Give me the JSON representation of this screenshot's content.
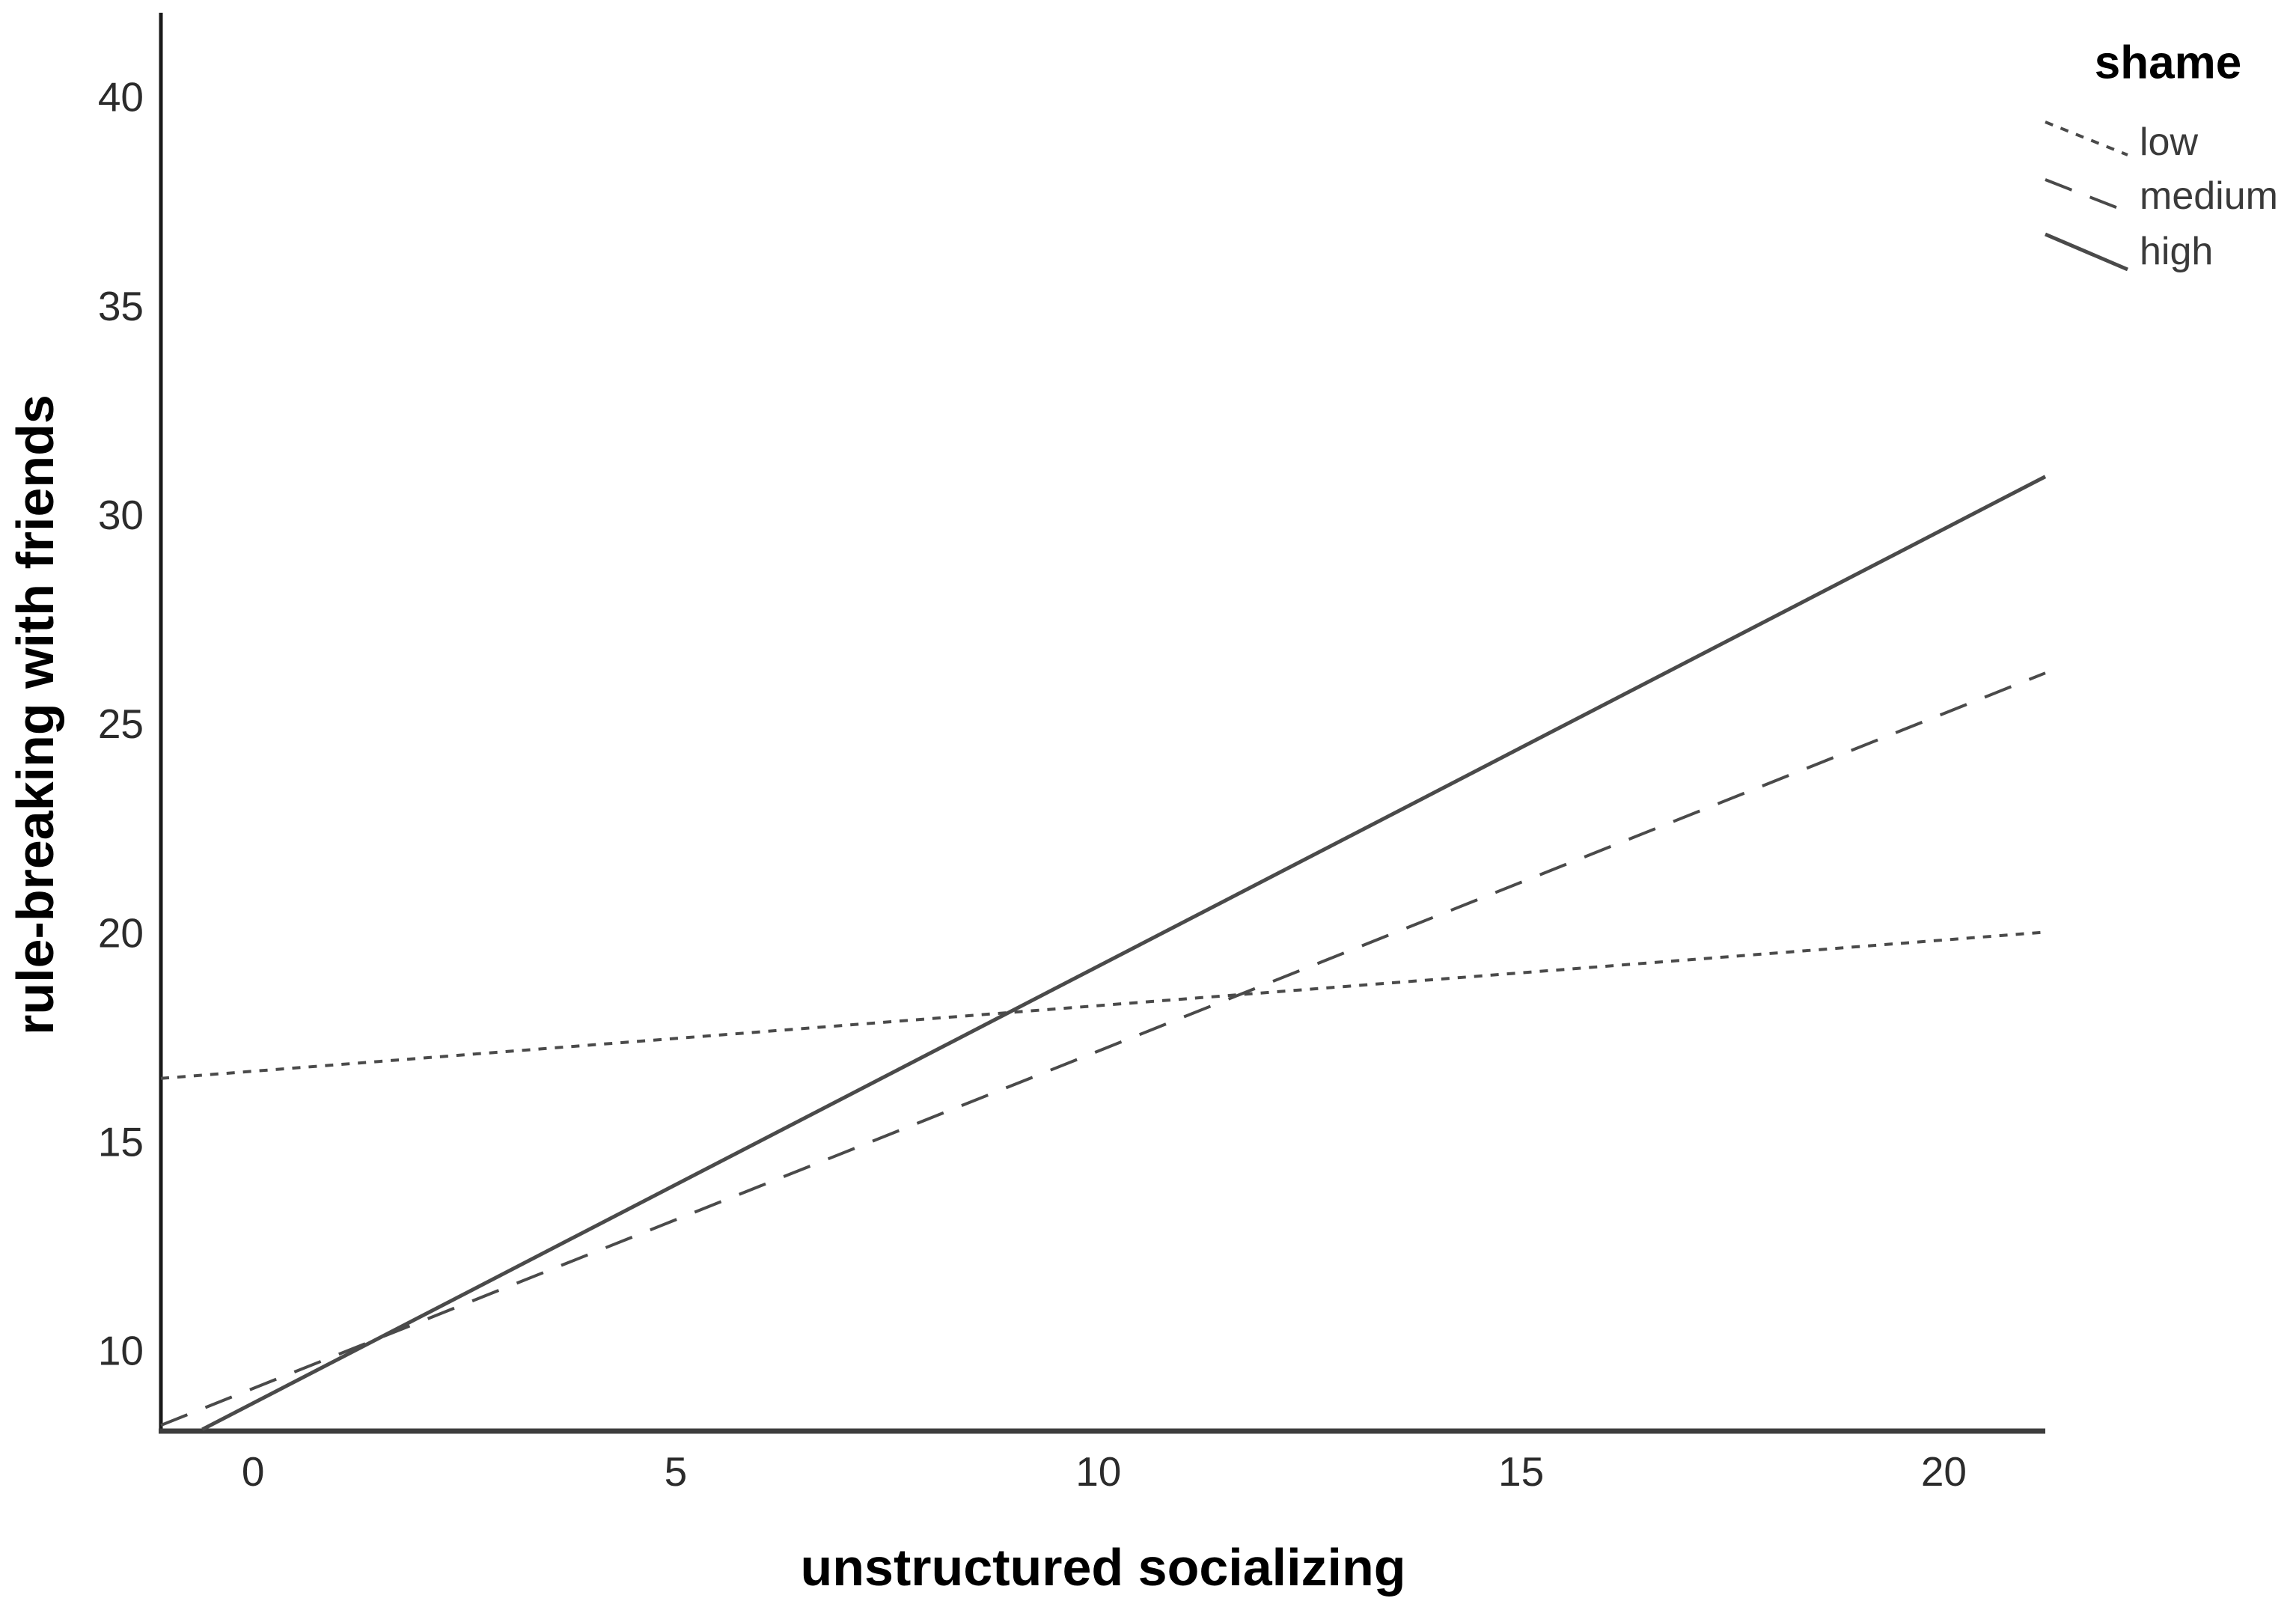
{
  "chart_data": {
    "type": "line",
    "title": "",
    "xlabel": "unstructured socializing",
    "ylabel": "rule-breaking with friends",
    "legend": {
      "title": "shame",
      "position": "top-right",
      "entries": [
        "low",
        "medium",
        "high"
      ]
    },
    "x_domain": [
      -1.09,
      21.2
    ],
    "y_domain": [
      8.06,
      42.0
    ],
    "x_ticks": [
      0,
      5,
      10,
      15,
      20
    ],
    "y_ticks": [
      10,
      15,
      20,
      25,
      30,
      35,
      40
    ],
    "grid": false,
    "series": [
      {
        "name": "low",
        "line_style": "dotted",
        "points": [
          [
            -1.09,
            16.5
          ],
          [
            21.2,
            20.0
          ]
        ]
      },
      {
        "name": "medium",
        "line_style": "dashed",
        "points": [
          [
            -1.09,
            8.2
          ],
          [
            21.2,
            26.2
          ]
        ]
      },
      {
        "name": "high",
        "line_style": "solid",
        "points": [
          [
            -0.6,
            8.1
          ],
          [
            21.2,
            30.9
          ]
        ]
      }
    ],
    "colors": {
      "series_line": "#4a4a4a",
      "x_axis": "#3d3d3d",
      "y_axis": "#1a1a1a",
      "tick_label": "#2b2b2b",
      "legend_label": "#3a3a3a",
      "axis_title": "#000000",
      "background": "#ffffff"
    }
  }
}
